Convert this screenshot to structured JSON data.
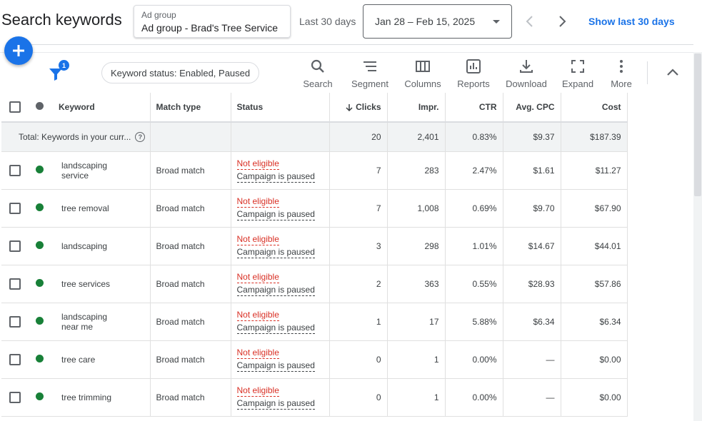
{
  "header": {
    "title": "Search keywords",
    "ad_group_label": "Ad group",
    "ad_group_value": "Ad group - Brad's Tree Service",
    "range_label": "Last 30 days",
    "date_range": "Jan 28 – Feb 15, 2025",
    "show_last": "Show last 30 days"
  },
  "toolbar": {
    "filter_count": "1",
    "filter_chip": "Keyword status: Enabled, Paused",
    "search": "Search",
    "segment": "Segment",
    "columns": "Columns",
    "reports": "Reports",
    "download": "Download",
    "expand": "Expand",
    "more": "More"
  },
  "table": {
    "columns": {
      "keyword": "Keyword",
      "match_type": "Match type",
      "status": "Status",
      "clicks": "Clicks",
      "impr": "Impr.",
      "ctr": "CTR",
      "avg_cpc": "Avg. CPC",
      "cost": "Cost"
    },
    "total": {
      "label": "Total: Keywords in your curr...",
      "clicks": "20",
      "impr": "2,401",
      "ctr": "0.83%",
      "avg_cpc": "$9.37",
      "cost": "$187.39"
    },
    "rows": [
      {
        "kw1": "landscaping",
        "kw2": "service",
        "match": "Broad match",
        "status1": "Not eligible",
        "status2": "Campaign is paused",
        "clicks": "7",
        "impr": "283",
        "ctr": "2.47%",
        "cpc": "$1.61",
        "cost": "$11.27"
      },
      {
        "kw1": "tree removal",
        "kw2": "",
        "match": "Broad match",
        "status1": "Not eligible",
        "status2": "Campaign is paused",
        "clicks": "7",
        "impr": "1,008",
        "ctr": "0.69%",
        "cpc": "$9.70",
        "cost": "$67.90"
      },
      {
        "kw1": "landscaping",
        "kw2": "",
        "match": "Broad match",
        "status1": "Not eligible",
        "status2": "Campaign is paused",
        "clicks": "3",
        "impr": "298",
        "ctr": "1.01%",
        "cpc": "$14.67",
        "cost": "$44.01"
      },
      {
        "kw1": "tree services",
        "kw2": "",
        "match": "Broad match",
        "status1": "Not eligible",
        "status2": "Campaign is paused",
        "clicks": "2",
        "impr": "363",
        "ctr": "0.55%",
        "cpc": "$28.93",
        "cost": "$57.86"
      },
      {
        "kw1": "landscaping",
        "kw2": "near me",
        "match": "Broad match",
        "status1": "Not eligible",
        "status2": "Campaign is paused",
        "clicks": "1",
        "impr": "17",
        "ctr": "5.88%",
        "cpc": "$6.34",
        "cost": "$6.34"
      },
      {
        "kw1": "tree care",
        "kw2": "",
        "match": "Broad match",
        "status1": "Not eligible",
        "status2": "Campaign is paused",
        "clicks": "0",
        "impr": "1",
        "ctr": "0.00%",
        "cpc": "—",
        "cost": "$0.00"
      },
      {
        "kw1": "tree trimming",
        "kw2": "",
        "match": "Broad match",
        "status1": "Not eligible",
        "status2": "Campaign is paused",
        "clicks": "0",
        "impr": "1",
        "ctr": "0.00%",
        "cpc": "—",
        "cost": "$0.00"
      }
    ]
  },
  "colors": {
    "accent": "#1a73e8",
    "enabled": "#188038",
    "error": "#d93025"
  }
}
